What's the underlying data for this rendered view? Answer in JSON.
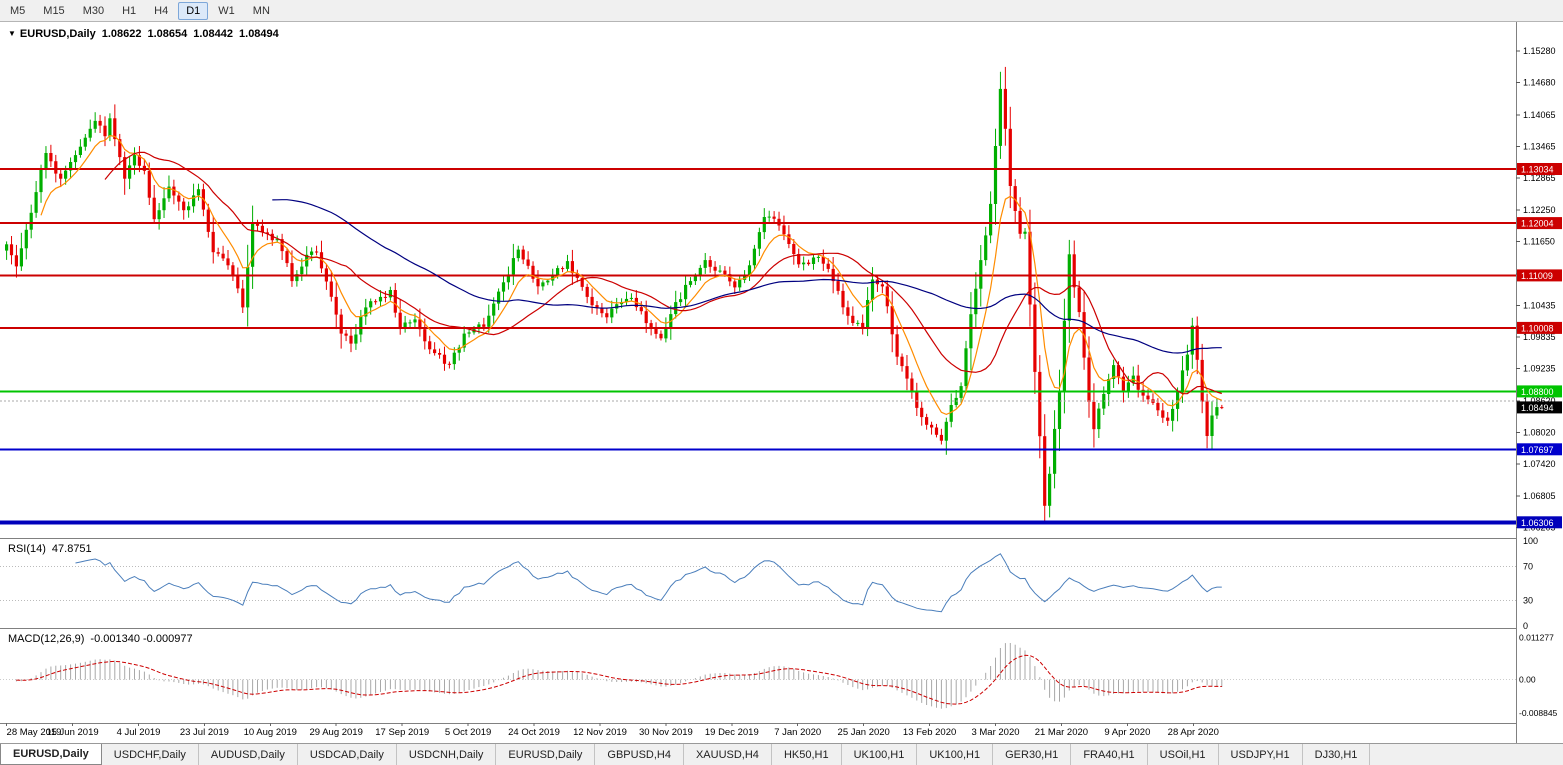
{
  "toolbar": {
    "timeframes": [
      "M5",
      "M15",
      "M30",
      "H1",
      "H4",
      "D1",
      "W1",
      "MN"
    ],
    "active": "D1"
  },
  "chart": {
    "collapse_icon": "▼",
    "symbol": "EURUSD,Daily",
    "open": "1.08622",
    "high": "1.08654",
    "low": "1.08442",
    "close": "1.08494"
  },
  "rsi_panel": {
    "label": "RSI(14)",
    "value": "47.8751"
  },
  "macd_panel": {
    "label": "MACD(12,26,9)",
    "value": "-0.001340 -0.000977"
  },
  "tabs": {
    "active_index": 0,
    "items": [
      "EURUSD,Daily",
      "USDCHF,Daily",
      "AUDUSD,Daily",
      "USDCAD,Daily",
      "USDCNH,Daily",
      "EURUSD,Daily",
      "GBPUSD,H4",
      "XAUUSD,H4",
      "HK50,H1",
      "UK100,H1",
      "UK100,H1",
      "GER30,H1",
      "FRA40,H1",
      "USOil,H1",
      "USDJPY,H1",
      "DJ30,H1"
    ],
    "separator": "|"
  },
  "chart_data": {
    "type": "candlestick",
    "symbol": "EURUSD",
    "timeframe": "Daily",
    "last_close": 1.08494,
    "price_max": 1.1572,
    "price_min": 1.0616,
    "up_color": "#00AE00",
    "down_color": "#E60000",
    "price_axis_ticks": [
      1.1528,
      1.1468,
      1.14065,
      1.13465,
      1.12865,
      1.1225,
      1.1165,
      1.11035,
      1.10435,
      1.09835,
      1.09235,
      1.0862,
      1.0802,
      1.0742,
      1.06805,
      1.06205
    ],
    "hlines": [
      {
        "price": 1.13034,
        "color": "#CC0000",
        "width": 2,
        "label": "1.13034"
      },
      {
        "price": 1.12004,
        "color": "#CC0000",
        "width": 2,
        "label": "1.12004"
      },
      {
        "price": 1.11009,
        "color": "#CC0000",
        "width": 2,
        "label": "1.11009"
      },
      {
        "price": 1.10008,
        "color": "#CC0000",
        "width": 2,
        "label": "1.10008"
      },
      {
        "price": 1.088,
        "color": "#00C400",
        "width": 2,
        "label": "1.08800"
      },
      {
        "price": 1.07697,
        "color": "#0000CC",
        "width": 2,
        "label": "1.07697"
      },
      {
        "price": 1.06306,
        "color": "#0000BB",
        "width": 4,
        "label": "1.06306"
      }
    ],
    "bid_dotted_line": {
      "price": 1.0862,
      "color": "#aaaaaa"
    },
    "current_price_label": {
      "price": 1.08494,
      "bg": "#000000",
      "text": "1.08494"
    },
    "x_labels": [
      "28 May 2019",
      "15 Jun 2019",
      "4 Jul 2019",
      "23 Jul 2019",
      "10 Aug 2019",
      "29 Aug 2019",
      "17 Sep 2019",
      "5 Oct 2019",
      "24 Oct 2019",
      "12 Nov 2019",
      "30 Nov 2019",
      "19 Dec 2019",
      "7 Jan 2020",
      "25 Jan 2020",
      "13 Feb 2020",
      "3 Mar 2020",
      "21 Mar 2020",
      "9 Apr 2020",
      "28 Apr 2020"
    ],
    "label_step": 13.4,
    "candle_count": 248,
    "seed": 11,
    "noise": 0.0016,
    "close_anchors": [
      [
        0,
        1.116
      ],
      [
        2,
        1.1118
      ],
      [
        5,
        1.122
      ],
      [
        8,
        1.1334
      ],
      [
        11,
        1.1285
      ],
      [
        14,
        1.133
      ],
      [
        17,
        1.138
      ],
      [
        18,
        1.1395
      ],
      [
        20,
        1.1366
      ],
      [
        21,
        1.14
      ],
      [
        24,
        1.1285
      ],
      [
        26,
        1.133
      ],
      [
        28,
        1.13
      ],
      [
        30,
        1.1208
      ],
      [
        33,
        1.127
      ],
      [
        36,
        1.1225
      ],
      [
        39,
        1.1265
      ],
      [
        42,
        1.1145
      ],
      [
        45,
        1.112
      ],
      [
        47,
        1.1076
      ],
      [
        48,
        1.104
      ],
      [
        50,
        1.12
      ],
      [
        53,
        1.118
      ],
      [
        55,
        1.117
      ],
      [
        58,
        1.109
      ],
      [
        61,
        1.114
      ],
      [
        63,
        1.1145
      ],
      [
        66,
        1.106
      ],
      [
        68,
        1.099
      ],
      [
        70,
        1.0971
      ],
      [
        73,
        1.104
      ],
      [
        76,
        1.106
      ],
      [
        78,
        1.1073
      ],
      [
        80,
        1.1
      ],
      [
        83,
        1.1017
      ],
      [
        86,
        1.096
      ],
      [
        90,
        1.0932
      ],
      [
        93,
        1.099
      ],
      [
        97,
        1.1003
      ],
      [
        100,
        1.107
      ],
      [
        104,
        1.115
      ],
      [
        108,
        1.108
      ],
      [
        111,
        1.11
      ],
      [
        114,
        1.1128
      ],
      [
        118,
        1.106
      ],
      [
        122,
        1.1021
      ],
      [
        125,
        1.105
      ],
      [
        127,
        1.1058
      ],
      [
        130,
        1.101
      ],
      [
        133,
        1.0981
      ],
      [
        136,
        1.105
      ],
      [
        139,
        1.109
      ],
      [
        142,
        1.113
      ],
      [
        145,
        1.111
      ],
      [
        148,
        1.1078
      ],
      [
        151,
        1.112
      ],
      [
        154,
        1.1212
      ],
      [
        157,
        1.1196
      ],
      [
        161,
        1.1122
      ],
      [
        165,
        1.1136
      ],
      [
        168,
        1.109
      ],
      [
        171,
        1.1024
      ],
      [
        174,
        1.1
      ],
      [
        176,
        1.1093
      ],
      [
        178,
        1.108
      ],
      [
        181,
        1.0946
      ],
      [
        184,
        1.088
      ],
      [
        186,
        1.0831
      ],
      [
        190,
        1.0786
      ],
      [
        192,
        1.0854
      ],
      [
        194,
        1.089
      ],
      [
        196,
        1.1027
      ],
      [
        198,
        1.113
      ],
      [
        200,
        1.1237
      ],
      [
        202,
        1.1456
      ],
      [
        203,
        1.138
      ],
      [
        204,
        1.1271
      ],
      [
        206,
        1.118
      ],
      [
        207,
        1.1184
      ],
      [
        209,
        1.0917
      ],
      [
        211,
        1.0662
      ],
      [
        212,
        1.0723
      ],
      [
        214,
        1.088
      ],
      [
        216,
        1.1141
      ],
      [
        218,
        1.1031
      ],
      [
        220,
        1.086
      ],
      [
        221,
        1.0808
      ],
      [
        223,
        1.0875
      ],
      [
        225,
        1.093
      ],
      [
        227,
        1.088
      ],
      [
        229,
        1.091
      ],
      [
        231,
        1.0872
      ],
      [
        233,
        1.0858
      ],
      [
        235,
        1.083
      ],
      [
        236,
        1.0824
      ],
      [
        238,
        1.088
      ],
      [
        240,
        1.095
      ],
      [
        241,
        1.1005
      ],
      [
        242,
        1.094
      ],
      [
        244,
        1.0795
      ],
      [
        245,
        1.0834
      ],
      [
        246,
        1.085
      ],
      [
        247,
        1.08494
      ]
    ],
    "ma_lines": [
      {
        "period": 8,
        "type": "ema",
        "color": "#FF8C00"
      },
      {
        "period": 21,
        "type": "sma",
        "color": "#CC0000"
      },
      {
        "period": 55,
        "type": "sma",
        "color": "#000080"
      }
    ],
    "rsi": {
      "period": 14,
      "color": "#4A7EBB",
      "levels": [
        70,
        30
      ],
      "axis_labels": [
        [
          100,
          "100"
        ],
        [
          70,
          "70"
        ],
        [
          30,
          "30"
        ],
        [
          0,
          "0"
        ]
      ]
    },
    "macd": {
      "fast": 12,
      "slow": 26,
      "signal": 9,
      "hist_color": "#A8A8A8",
      "signal_color": "#CC0000",
      "axis_max": 0.0127,
      "axis_min": -0.0105,
      "axis_labels": [
        [
          0.011277,
          "0.011277"
        ],
        [
          0,
          "0.00"
        ],
        [
          -0.008845,
          "-0.008845"
        ]
      ]
    }
  }
}
